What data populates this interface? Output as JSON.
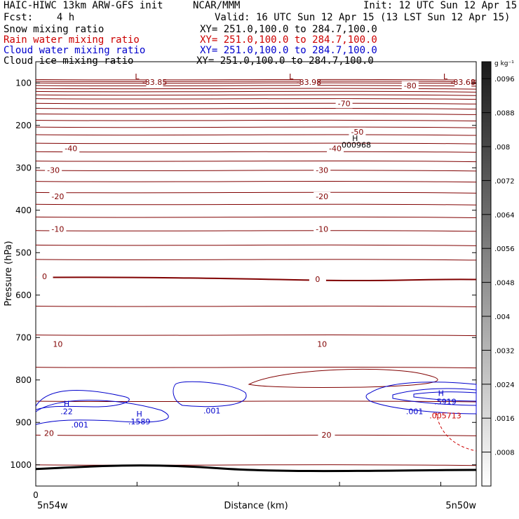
{
  "header": {
    "model": "HAIC-HIWC 13km ARW-GFS init",
    "center": "NCAR/MMM",
    "init": "Init: 12 UTC Sun 12 Apr 15",
    "fcst": "Fcst:    4 h",
    "valid": "Valid: 16 UTC Sun 12 Apr 15 (13 LST Sun 12 Apr 15)",
    "fields": [
      {
        "label": "Snow mixing ratio",
        "xy": "XY= 251.0,100.0 to 284.7,100.0",
        "color": "#000000"
      },
      {
        "label": "Rain water mixing ratio",
        "xy": "XY= 251.0,100.0 to 284.7,100.0",
        "color": "#cc0000"
      },
      {
        "label": "Cloud water mixing ratio",
        "xy": "XY= 251.0,100.0 to 284.7,100.0",
        "color": "#0000cc"
      },
      {
        "label": "Cloud ice mixing ratio",
        "xy": "XY= 251.0,100.0 to 284.7,100.0",
        "color": "#000000"
      }
    ]
  },
  "chart_data": {
    "type": "contour",
    "xlabel": "Distance (km)",
    "ylabel": "Pressure (hPa)",
    "x_start_label": "5n54w",
    "x_end_label": "5n50w",
    "x_zero_tick": "0",
    "yticks": [
      100,
      200,
      300,
      400,
      500,
      600,
      700,
      800,
      900,
      1000
    ],
    "ylim": [
      1050,
      50
    ],
    "colorbar": {
      "unit": "g kg⁻¹",
      "ticks": [
        ".0096",
        ".0088",
        ".008",
        ".0072",
        ".0064",
        ".0056",
        ".0048",
        ".004",
        ".0032",
        ".0024",
        ".0016",
        ".0008"
      ],
      "ticks_value": [
        0.0096,
        0.0088,
        0.008,
        0.0072,
        0.0064,
        0.0056,
        0.0048,
        0.004,
        0.0032,
        0.0024,
        0.0016,
        0.0008
      ],
      "range": [
        0,
        0.01
      ]
    },
    "temperature_labels": [
      {
        "text": "-83.85",
        "fx": 0.27,
        "p": 98
      },
      {
        "text": "-83.98",
        "fx": 0.62,
        "p": 98
      },
      {
        "text": "-83.68",
        "fx": 0.97,
        "p": 98
      },
      {
        "text": "-80",
        "fx": 0.85,
        "p": 106
      },
      {
        "text": "-70",
        "fx": 0.7,
        "p": 148
      },
      {
        "text": "-50",
        "fx": 0.73,
        "p": 215
      },
      {
        "text": "-40",
        "fx": 0.08,
        "p": 254
      },
      {
        "text": "-40",
        "fx": 0.68,
        "p": 254
      },
      {
        "text": "-30",
        "fx": 0.04,
        "p": 305
      },
      {
        "text": "-30",
        "fx": 0.65,
        "p": 305
      },
      {
        "text": "-20",
        "fx": 0.05,
        "p": 367
      },
      {
        "text": "-20",
        "fx": 0.65,
        "p": 367
      },
      {
        "text": "-10",
        "fx": 0.05,
        "p": 444
      },
      {
        "text": "-10",
        "fx": 0.65,
        "p": 444
      },
      {
        "text": "0",
        "fx": 0.02,
        "p": 556
      },
      {
        "text": "0",
        "fx": 0.64,
        "p": 562
      },
      {
        "text": "10",
        "fx": 0.05,
        "p": 715
      },
      {
        "text": "10",
        "fx": 0.65,
        "p": 715
      },
      {
        "text": "20",
        "fx": 0.03,
        "p": 925
      },
      {
        "text": "20",
        "fx": 0.66,
        "p": 929
      }
    ],
    "extrema": [
      {
        "letter": "L",
        "fx": 0.23,
        "p": 85
      },
      {
        "letter": "L",
        "fx": 0.58,
        "p": 85
      },
      {
        "letter": "L",
        "fx": 0.93,
        "p": 85
      },
      {
        "letter": "H",
        "fx": 0.725,
        "p": 230
      },
      {
        "letter": "H",
        "fx": 0.07,
        "p": 856
      },
      {
        "letter": "H",
        "fx": 0.235,
        "p": 880
      },
      {
        "letter": "H",
        "fx": 0.92,
        "p": 831
      }
    ],
    "annotations": [
      {
        "text": ".000968",
        "fx": 0.725,
        "p": 246,
        "color": "#000000"
      },
      {
        "text": ".22",
        "fx": 0.07,
        "p": 874,
        "color": "#0000cc"
      },
      {
        "text": ".001",
        "fx": 0.1,
        "p": 905,
        "color": "#0000cc"
      },
      {
        "text": ".1589",
        "fx": 0.235,
        "p": 898,
        "color": "#0000cc"
      },
      {
        "text": ".001",
        "fx": 0.4,
        "p": 872,
        "color": "#0000cc"
      },
      {
        "text": ".001",
        "fx": 0.86,
        "p": 874,
        "color": "#0000cc"
      },
      {
        "text": ".5919",
        "fx": 0.93,
        "p": 851,
        "color": "#0000cc"
      },
      {
        "text": ".005713",
        "fx": 0.93,
        "p": 884,
        "color": "#cc0000"
      }
    ],
    "colors": {
      "temperature": "#800000",
      "cloud_water": "#0000cc",
      "rain_water": "#cc0000",
      "ground": "#000000"
    }
  }
}
